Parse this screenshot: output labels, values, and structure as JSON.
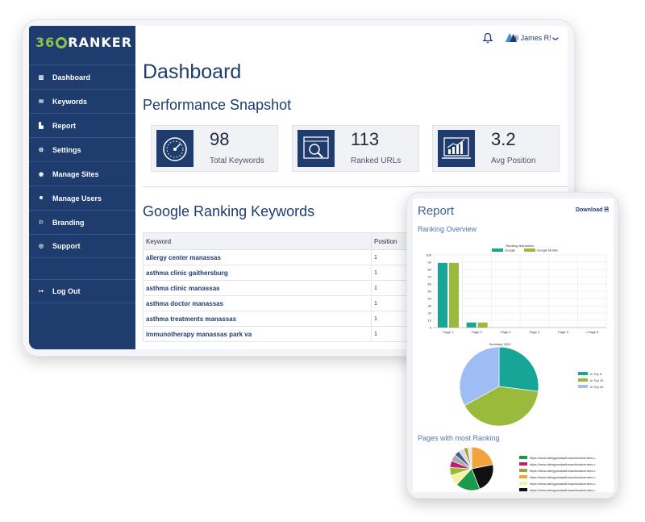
{
  "brand": {
    "logo_num": "36",
    "logo_word": "RANKER"
  },
  "header": {
    "user_greeting": "Hi James R!",
    "caret": "❯"
  },
  "sidebar": {
    "items": [
      {
        "label": "Dashboard",
        "icon": "dashboard-icon",
        "glyph": "▥"
      },
      {
        "label": "Keywords",
        "icon": "keywords-icon",
        "glyph": "✉"
      },
      {
        "label": "Report",
        "icon": "report-icon",
        "glyph": "▙"
      },
      {
        "label": "Settings",
        "icon": "settings-icon",
        "glyph": "⚙"
      },
      {
        "label": "Manage Sites",
        "icon": "globe-icon",
        "glyph": "◉"
      },
      {
        "label": "Manage Users",
        "icon": "users-icon",
        "glyph": "☻"
      },
      {
        "label": "Branding",
        "icon": "flag-icon",
        "glyph": "⚐"
      },
      {
        "label": "Support",
        "icon": "support-icon",
        "glyph": "◎"
      }
    ],
    "logout": {
      "label": "Log Out",
      "icon": "logout-icon",
      "glyph": "↦"
    }
  },
  "main": {
    "title": "Dashboard",
    "snapshot_title": "Performance Snapshot",
    "stats": [
      {
        "value": "98",
        "label": "Total Keywords",
        "icon": "speedometer-icon"
      },
      {
        "value": "113",
        "label": "Ranked URLs",
        "icon": "search-page-icon"
      },
      {
        "value": "3.2",
        "label": "Avg Position",
        "icon": "growth-chart-icon"
      }
    ],
    "keywords_title": "Google Ranking Keywords",
    "table": {
      "headers": [
        "Keyword",
        "Position"
      ],
      "rows": [
        [
          "allergy center manassas",
          "1"
        ],
        [
          "asthma clinic gaithersburg",
          "1"
        ],
        [
          "asthma clinic manassas",
          "1"
        ],
        [
          "asthma doctor manassas",
          "1"
        ],
        [
          "asthma treatments manassas",
          "1"
        ],
        [
          "immunotherapy manassas park va",
          "1"
        ]
      ]
    }
  },
  "report": {
    "title": "Report",
    "download_label": "Download",
    "ranking_overview": "Ranking Overview",
    "pages_title": "Pages with most Ranking",
    "pages_legend": [
      {
        "label": "https://www.allergyandasthmaclinicalcenters.c",
        "color": "#1a9a4a"
      },
      {
        "label": "https://www.allergyandasthmaclinicalcenters.c",
        "color": "#c21f6f"
      },
      {
        "label": "https://www.allergyandasthmaclinicalcenters.c",
        "color": "#a3a03a"
      },
      {
        "label": "https://www.allergyandasthmaclinicalcenters.c",
        "color": "#f2a33b"
      },
      {
        "label": "https://www.allergyandasthmaclinicalcenters.c",
        "color": "#f5f2a0"
      },
      {
        "label": "https://www.allergyandasthmaclinicalcenters.c",
        "color": "#111111"
      }
    ]
  },
  "chart_data": [
    {
      "type": "bar",
      "title": "Ranking distribution",
      "categories": [
        "Page 1",
        "Page 2",
        "Page 3",
        "Page 4",
        "Page 5",
        "> Page 5"
      ],
      "series": [
        {
          "name": "Google",
          "values": [
            89,
            7,
            0,
            0,
            0,
            0
          ],
          "color": "#17a597"
        },
        {
          "name": "Google Mobile",
          "values": [
            89,
            7,
            0,
            0,
            0,
            0
          ],
          "color": "#9aba3c"
        }
      ],
      "ylim": [
        0,
        100
      ],
      "yticks": [
        0,
        10,
        20,
        30,
        40,
        50,
        60,
        70,
        80,
        90,
        100
      ],
      "grid": true,
      "legend": "top"
    },
    {
      "type": "pie",
      "title": "Summary 2022",
      "labels": [
        "In Top 5",
        "In Top 10",
        "In Top 20"
      ],
      "values": [
        27,
        40,
        33
      ],
      "colors": [
        "#17a597",
        "#9aba3c",
        "#9fbdf5"
      ],
      "legend": "right"
    },
    {
      "type": "pie",
      "title": "",
      "values": [
        22,
        22,
        18,
        8,
        6,
        5,
        5,
        4,
        4,
        3,
        3
      ],
      "colors": [
        "#f2a33b",
        "#111111",
        "#1a9a4a",
        "#f5f2a0",
        "#9aba3c",
        "#c21f6f",
        "#aaaaaa",
        "#3e5f96",
        "#d9d9d9",
        "#a3a03a",
        "#e8e8e8"
      ]
    }
  ]
}
